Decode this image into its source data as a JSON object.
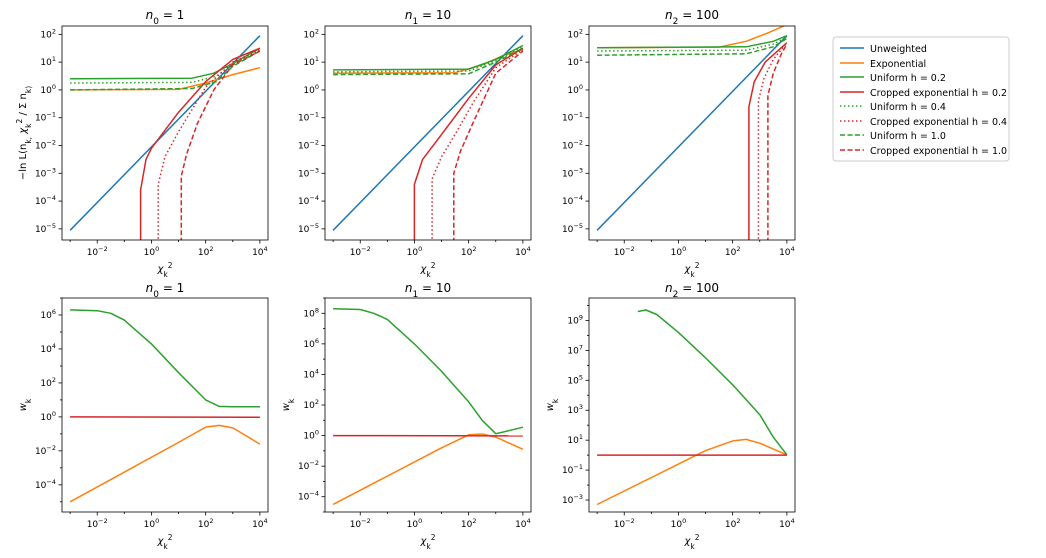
{
  "legend": [
    {
      "label": "Unweighted",
      "color": "#1f77b4",
      "dash": "solid"
    },
    {
      "label": "Exponential",
      "color": "#ff7f0e",
      "dash": "solid"
    },
    {
      "label": "Uniform h = 0.2",
      "color": "#2ca02c",
      "dash": "solid"
    },
    {
      "label": "Cropped exponential h = 0.2",
      "color": "#d62728",
      "dash": "solid"
    },
    {
      "label": "Uniform h = 0.4",
      "color": "#2ca02c",
      "dash": "dotted"
    },
    {
      "label": "Cropped exponential h = 0.4",
      "color": "#d62728",
      "dash": "dotted"
    },
    {
      "label": "Uniform h = 1.0",
      "color": "#2ca02c",
      "dash": "dashed"
    },
    {
      "label": "Cropped exponential h = 1.0",
      "color": "#d62728",
      "dash": "dashed"
    }
  ],
  "chart_data": [
    {
      "type": "line",
      "title": "n_0 = 1",
      "xlabel": "χ_k^2",
      "ylabel": "−ln L(n_k, χ_k^2 / Σ n_k)",
      "xscale": "log",
      "yscale": "log",
      "xlim": [
        -3.3,
        4.3
      ],
      "ylim": [
        -5.4,
        2.3
      ],
      "xticks": [
        -2,
        0,
        2,
        4
      ],
      "yticks": [
        -5,
        -4,
        -3,
        -2,
        -1,
        0,
        1,
        2
      ],
      "series": [
        {
          "name": "Unweighted",
          "color": "#1f77b4",
          "dash": "solid",
          "points": [
            [
              -3,
              -5.05
            ],
            [
              4,
              1.95
            ]
          ]
        },
        {
          "name": "Exponential",
          "color": "#ff7f0e",
          "dash": "solid",
          "points": [
            [
              -3,
              0
            ],
            [
              1,
              0.02
            ],
            [
              2,
              0.25
            ],
            [
              3,
              0.55
            ],
            [
              4,
              0.8
            ]
          ]
        },
        {
          "name": "Uniform h = 0.2",
          "color": "#2ca02c",
          "dash": "solid",
          "points": [
            [
              -3,
              0.4
            ],
            [
              1.5,
              0.42
            ],
            [
              2.3,
              0.6
            ],
            [
              3,
              0.95
            ],
            [
              4,
              1.5
            ]
          ]
        },
        {
          "name": "Cropped exponential h = 0.2",
          "color": "#d62728",
          "dash": "solid",
          "points": [
            [
              -0.4,
              -5.5
            ],
            [
              -0.4,
              -3.6
            ],
            [
              -0.2,
              -2.5
            ],
            [
              0,
              -2.1
            ],
            [
              1,
              -0.8
            ],
            [
              2,
              0.3
            ],
            [
              3,
              1.1
            ],
            [
              4,
              1.5
            ]
          ]
        },
        {
          "name": "Uniform h = 0.4",
          "color": "#2ca02c",
          "dash": "dotted",
          "points": [
            [
              -3,
              0.25
            ],
            [
              1.5,
              0.27
            ],
            [
              2.4,
              0.5
            ],
            [
              3,
              0.9
            ],
            [
              4,
              1.45
            ]
          ]
        },
        {
          "name": "Cropped exponential h = 0.4",
          "color": "#d62728",
          "dash": "dotted",
          "points": [
            [
              0.25,
              -5.5
            ],
            [
              0.25,
              -3.4
            ],
            [
              0.5,
              -2.4
            ],
            [
              1,
              -1.5
            ],
            [
              2,
              0.1
            ],
            [
              3,
              1.0
            ],
            [
              4,
              1.45
            ]
          ]
        },
        {
          "name": "Uniform h = 1.0",
          "color": "#2ca02c",
          "dash": "dashed",
          "points": [
            [
              -3,
              0
            ],
            [
              1.5,
              0.05
            ],
            [
              2.4,
              0.3
            ],
            [
              3,
              0.85
            ],
            [
              4,
              1.4
            ]
          ]
        },
        {
          "name": "Cropped exponential h = 1.0",
          "color": "#d62728",
          "dash": "dashed",
          "points": [
            [
              1.1,
              -5.5
            ],
            [
              1.1,
              -3.1
            ],
            [
              1.3,
              -2.3
            ],
            [
              1.7,
              -1.2
            ],
            [
              2.3,
              0
            ],
            [
              3,
              0.9
            ],
            [
              4,
              1.4
            ]
          ]
        }
      ]
    },
    {
      "type": "line",
      "title": "n_1 = 10",
      "xlabel": "χ_k^2",
      "ylabel": "",
      "xscale": "log",
      "yscale": "log",
      "xlim": [
        -3.3,
        4.3
      ],
      "ylim": [
        -5.4,
        2.3
      ],
      "xticks": [
        -2,
        0,
        2,
        4
      ],
      "yticks": [
        -5,
        -4,
        -3,
        -2,
        -1,
        0,
        1,
        2
      ],
      "series": [
        {
          "name": "Unweighted",
          "color": "#1f77b4",
          "dash": "solid",
          "points": [
            [
              -3,
              -5.05
            ],
            [
              4,
              1.95
            ]
          ]
        },
        {
          "name": "Exponential",
          "color": "#ff7f0e",
          "dash": "solid",
          "points": [
            [
              -3,
              0.6
            ],
            [
              1.5,
              0.62
            ],
            [
              2.5,
              0.9
            ],
            [
              3.3,
              1.25
            ],
            [
              4,
              1.45
            ]
          ]
        },
        {
          "name": "Uniform h = 0.2",
          "color": "#2ca02c",
          "dash": "solid",
          "points": [
            [
              -3,
              0.72
            ],
            [
              2,
              0.75
            ],
            [
              3,
              1.1
            ],
            [
              4,
              1.6
            ]
          ]
        },
        {
          "name": "Cropped exponential h = 0.2",
          "color": "#d62728",
          "dash": "solid",
          "points": [
            [
              0,
              -5.5
            ],
            [
              0,
              -3.4
            ],
            [
              0.3,
              -2.5
            ],
            [
              1,
              -1.6
            ],
            [
              2,
              -0.3
            ],
            [
              3,
              0.9
            ],
            [
              4,
              1.5
            ]
          ]
        },
        {
          "name": "Uniform h = 0.4",
          "color": "#2ca02c",
          "dash": "dotted",
          "points": [
            [
              -3,
              0.65
            ],
            [
              2,
              0.68
            ],
            [
              3,
              1.05
            ],
            [
              4,
              1.55
            ]
          ]
        },
        {
          "name": "Cropped exponential h = 0.4",
          "color": "#d62728",
          "dash": "dotted",
          "points": [
            [
              0.65,
              -5.5
            ],
            [
              0.65,
              -3.2
            ],
            [
              1,
              -2.4
            ],
            [
              1.5,
              -1.6
            ],
            [
              2.2,
              -0.4
            ],
            [
              3,
              0.8
            ],
            [
              4,
              1.45
            ]
          ]
        },
        {
          "name": "Uniform h = 1.0",
          "color": "#2ca02c",
          "dash": "dashed",
          "points": [
            [
              -3,
              0.55
            ],
            [
              2,
              0.58
            ],
            [
              3,
              1.0
            ],
            [
              4,
              1.5
            ]
          ]
        },
        {
          "name": "Cropped exponential h = 1.0",
          "color": "#d62728",
          "dash": "dashed",
          "points": [
            [
              1.45,
              -5.5
            ],
            [
              1.45,
              -3.0
            ],
            [
              1.7,
              -2.2
            ],
            [
              2.2,
              -1.1
            ],
            [
              3,
              0.6
            ],
            [
              4,
              1.4
            ]
          ]
        }
      ]
    },
    {
      "type": "line",
      "title": "n_2 = 100",
      "xlabel": "χ_k^2",
      "ylabel": "",
      "xscale": "log",
      "yscale": "log",
      "xlim": [
        -3.3,
        4.3
      ],
      "ylim": [
        -5.4,
        2.3
      ],
      "xticks": [
        -2,
        0,
        2,
        4
      ],
      "yticks": [
        -5,
        -4,
        -3,
        -2,
        -1,
        0,
        1,
        2
      ],
      "series": [
        {
          "name": "Unweighted",
          "color": "#1f77b4",
          "dash": "solid",
          "points": [
            [
              -3,
              -5.05
            ],
            [
              4,
              1.95
            ]
          ]
        },
        {
          "name": "Exponential",
          "color": "#ff7f0e",
          "dash": "solid",
          "points": [
            [
              -3,
              1.52
            ],
            [
              1.5,
              1.54
            ],
            [
              2.5,
              1.75
            ],
            [
              3.3,
              2.05
            ],
            [
              4,
              2.35
            ]
          ]
        },
        {
          "name": "Uniform h = 0.2",
          "color": "#2ca02c",
          "dash": "solid",
          "points": [
            [
              -3,
              1.52
            ],
            [
              2.5,
              1.55
            ],
            [
              3.5,
              1.75
            ],
            [
              4,
              1.95
            ]
          ]
        },
        {
          "name": "Cropped exponential h = 0.2",
          "color": "#d62728",
          "dash": "solid",
          "points": [
            [
              2.6,
              -5.5
            ],
            [
              2.6,
              -0.6
            ],
            [
              2.8,
              0.3
            ],
            [
              3.2,
              1.0
            ],
            [
              4,
              1.7
            ]
          ]
        },
        {
          "name": "Uniform h = 0.4",
          "color": "#2ca02c",
          "dash": "dotted",
          "points": [
            [
              -3,
              1.4
            ],
            [
              2.5,
              1.43
            ],
            [
              3.5,
              1.65
            ],
            [
              4,
              1.9
            ]
          ]
        },
        {
          "name": "Cropped exponential h = 0.4",
          "color": "#d62728",
          "dash": "dotted",
          "points": [
            [
              2.95,
              -5.5
            ],
            [
              2.95,
              -0.4
            ],
            [
              3.15,
              0.4
            ],
            [
              3.5,
              1.1
            ],
            [
              4,
              1.7
            ]
          ]
        },
        {
          "name": "Uniform h = 1.0",
          "color": "#2ca02c",
          "dash": "dashed",
          "points": [
            [
              -3,
              1.25
            ],
            [
              2.5,
              1.3
            ],
            [
              3.5,
              1.55
            ],
            [
              4,
              1.85
            ]
          ]
        },
        {
          "name": "Cropped exponential h = 1.0",
          "color": "#d62728",
          "dash": "dashed",
          "points": [
            [
              3.3,
              -5.5
            ],
            [
              3.3,
              -0.2
            ],
            [
              3.5,
              0.6
            ],
            [
              3.8,
              1.3
            ],
            [
              4,
              1.65
            ]
          ]
        }
      ]
    },
    {
      "type": "line",
      "title": "n_0 = 1",
      "xlabel": "χ_k^2",
      "ylabel": "w_k",
      "xscale": "log",
      "yscale": "log",
      "xlim": [
        -3.3,
        4.3
      ],
      "ylim": [
        -5.6,
        7.0
      ],
      "xticks": [
        -2,
        0,
        2,
        4
      ],
      "yticks": [
        -4,
        -2,
        0,
        2,
        4,
        6
      ],
      "series": [
        {
          "name": "Exponential",
          "color": "#ff7f0e",
          "dash": "solid",
          "points": [
            [
              -3,
              -5.0
            ],
            [
              1,
              -1.5
            ],
            [
              2,
              -0.6
            ],
            [
              2.5,
              -0.5
            ],
            [
              3,
              -0.65
            ],
            [
              4,
              -1.6
            ]
          ]
        },
        {
          "name": "Uniform h = 0.2",
          "color": "#2ca02c",
          "dash": "solid",
          "points": [
            [
              -3,
              6.3
            ],
            [
              -2,
              6.25
            ],
            [
              -1.5,
              6.1
            ],
            [
              -1,
              5.7
            ],
            [
              0,
              4.3
            ],
            [
              1,
              2.6
            ],
            [
              2,
              1.0
            ],
            [
              2.5,
              0.62
            ],
            [
              3,
              0.6
            ],
            [
              4,
              0.6
            ]
          ]
        },
        {
          "name": "Cropped exponential h = 0.2",
          "color": "#d62728",
          "dash": "solid",
          "points": [
            [
              -3,
              0
            ],
            [
              4,
              -0.02
            ]
          ]
        }
      ]
    },
    {
      "type": "line",
      "title": "n_1 = 10",
      "xlabel": "χ_k^2",
      "ylabel": "w_k",
      "xscale": "log",
      "yscale": "log",
      "xlim": [
        -3.3,
        4.3
      ],
      "ylim": [
        -5.0,
        9.0
      ],
      "xticks": [
        -2,
        0,
        2,
        4
      ],
      "yticks": [
        -4,
        -2,
        0,
        2,
        4,
        6,
        8
      ],
      "series": [
        {
          "name": "Exponential",
          "color": "#ff7f0e",
          "dash": "solid",
          "points": [
            [
              -3,
              -4.5
            ],
            [
              1,
              -0.8
            ],
            [
              2,
              0.05
            ],
            [
              2.5,
              0.1
            ],
            [
              3,
              -0.1
            ],
            [
              4,
              -0.9
            ]
          ]
        },
        {
          "name": "Uniform h = 0.2",
          "color": "#2ca02c",
          "dash": "solid",
          "points": [
            [
              -3,
              8.3
            ],
            [
              -2,
              8.25
            ],
            [
              -1.5,
              8.0
            ],
            [
              -1,
              7.6
            ],
            [
              0,
              6.0
            ],
            [
              1,
              4.2
            ],
            [
              2,
              2.2
            ],
            [
              2.5,
              1.0
            ],
            [
              3,
              0.12
            ],
            [
              3.2,
              0.2
            ],
            [
              4,
              0.55
            ]
          ]
        },
        {
          "name": "Cropped exponential h = 0.2",
          "color": "#d62728",
          "dash": "solid",
          "points": [
            [
              -3,
              0
            ],
            [
              4,
              -0.02
            ]
          ]
        }
      ]
    },
    {
      "type": "line",
      "title": "n_2 = 100",
      "xlabel": "χ_k^2",
      "ylabel": "w_k",
      "xscale": "log",
      "yscale": "log",
      "xlim": [
        -3.3,
        4.3
      ],
      "ylim": [
        -3.8,
        10.5
      ],
      "xticks": [
        -2,
        0,
        2,
        4
      ],
      "yticks": [
        -3,
        -1,
        1,
        3,
        5,
        7,
        9
      ],
      "series": [
        {
          "name": "Exponential",
          "color": "#ff7f0e",
          "dash": "solid",
          "points": [
            [
              -3,
              -3.3
            ],
            [
              1,
              0.3
            ],
            [
              2,
              0.95
            ],
            [
              2.5,
              1.05
            ],
            [
              3,
              0.8
            ],
            [
              4,
              0.02
            ]
          ]
        },
        {
          "name": "Uniform h = 0.2",
          "color": "#2ca02c",
          "dash": "solid",
          "points": [
            [
              -1.5,
              9.6
            ],
            [
              -1.2,
              9.7
            ],
            [
              -0.8,
              9.4
            ],
            [
              0,
              8.2
            ],
            [
              1,
              6.5
            ],
            [
              2,
              4.7
            ],
            [
              3,
              2.7
            ],
            [
              3.5,
              1.2
            ],
            [
              4,
              0.02
            ]
          ]
        },
        {
          "name": "Cropped exponential h = 0.2",
          "color": "#d62728",
          "dash": "solid",
          "points": [
            [
              -3,
              0
            ],
            [
              4,
              0
            ]
          ]
        }
      ]
    }
  ]
}
